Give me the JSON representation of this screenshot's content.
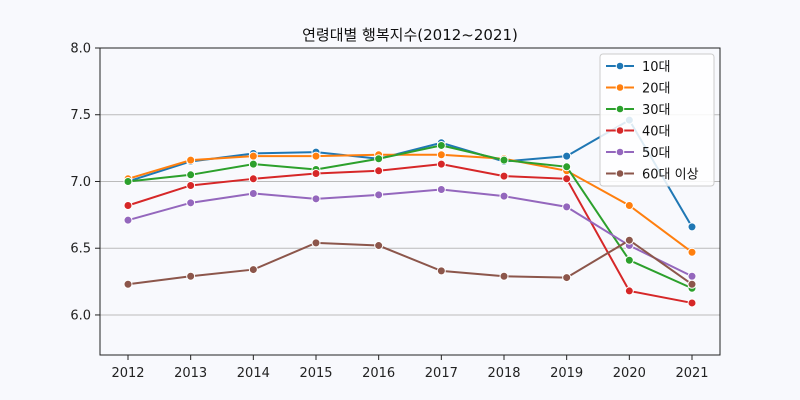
{
  "chart_data": {
    "type": "line",
    "title": "연령대별 행복지수(2012~2021)",
    "xlabel": "",
    "ylabel": "",
    "x": [
      "2012",
      "2013",
      "2014",
      "2015",
      "2016",
      "2017",
      "2018",
      "2019",
      "2020",
      "2021"
    ],
    "ylim": [
      5.7,
      8.0
    ],
    "yticks": [
      "6.0",
      "6.5",
      "7.0",
      "7.5",
      "8.0"
    ],
    "grid": "horizontal",
    "legend": "top-right",
    "series": [
      {
        "name": "10대",
        "color": "#1f77b4",
        "values": [
          7.0,
          7.15,
          7.21,
          7.22,
          7.17,
          7.29,
          7.15,
          7.19,
          7.46,
          6.66
        ]
      },
      {
        "name": "20대",
        "color": "#ff7f0e",
        "values": [
          7.02,
          7.16,
          7.19,
          7.19,
          7.2,
          7.2,
          7.17,
          7.08,
          6.82,
          6.47
        ]
      },
      {
        "name": "30대",
        "color": "#2ca02c",
        "values": [
          7.0,
          7.05,
          7.13,
          7.09,
          7.17,
          7.27,
          7.16,
          7.11,
          6.41,
          6.2
        ]
      },
      {
        "name": "40대",
        "color": "#d62728",
        "values": [
          6.82,
          6.97,
          7.02,
          7.06,
          7.08,
          7.13,
          7.04,
          7.02,
          6.18,
          6.09
        ]
      },
      {
        "name": "50대",
        "color": "#9467bd",
        "values": [
          6.71,
          6.84,
          6.91,
          6.87,
          6.9,
          6.94,
          6.89,
          6.81,
          6.52,
          6.29
        ]
      },
      {
        "name": "60대 이상",
        "color": "#8c564b",
        "values": [
          6.23,
          6.29,
          6.34,
          6.54,
          6.52,
          6.33,
          6.29,
          6.28,
          6.56,
          6.23
        ]
      }
    ]
  }
}
